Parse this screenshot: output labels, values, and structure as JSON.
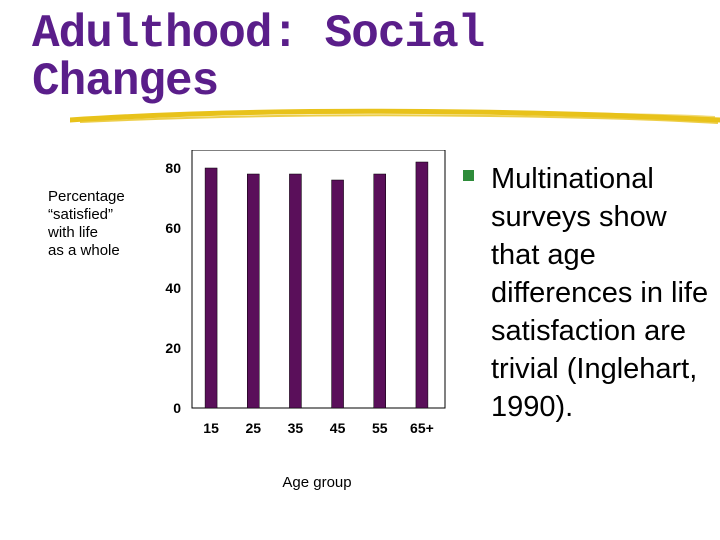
{
  "slide": {
    "title_line1": "Adulthood: Social",
    "title_line2": "Changes"
  },
  "bullet": {
    "text": "Multinational surveys show that age differences in life satisfaction are trivial (Inglehart, 1990)."
  },
  "colors": {
    "title": "#5a1e8a",
    "bar": "#5a0f5a",
    "underline": "#e8c21a",
    "bullet_marker": "#2e8c3a"
  },
  "chart_data": {
    "type": "bar",
    "title": "",
    "ylabel_lines": [
      "Percentage",
      "“satisfied”",
      "with life",
      "as a whole"
    ],
    "xlabel": "Age group",
    "categories": [
      "15",
      "25",
      "35",
      "45",
      "55",
      "65+"
    ],
    "values": [
      80,
      78,
      78,
      76,
      78,
      82
    ],
    "ylim": [
      0,
      86
    ],
    "yticks": [
      0,
      20,
      40,
      60,
      80
    ],
    "grid": false
  }
}
